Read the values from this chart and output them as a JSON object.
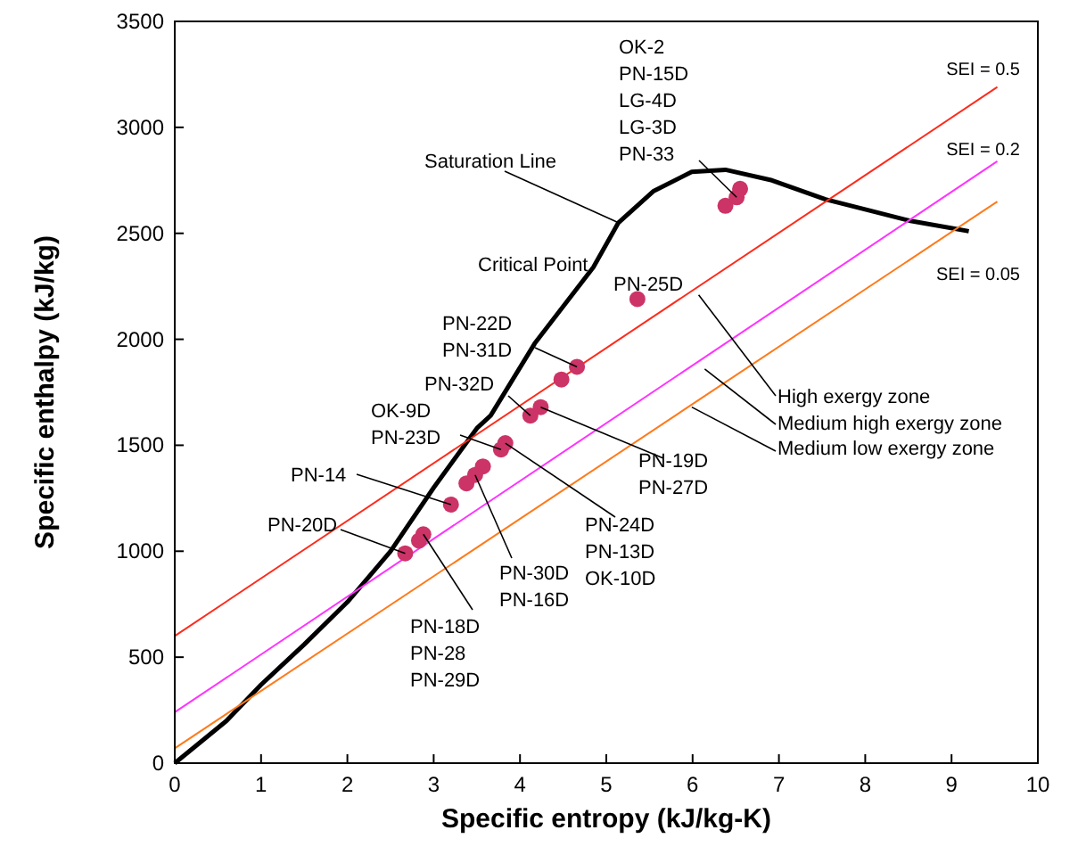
{
  "chart_data": {
    "type": "scatter",
    "xlabel": "Specific entropy (kJ/kg-K)",
    "ylabel": "Specific enthalpy (kJ/kg)",
    "xlim": [
      0,
      10
    ],
    "ylim": [
      0,
      3500
    ],
    "xticks": [
      0,
      1,
      2,
      3,
      4,
      5,
      6,
      7,
      8,
      9,
      10
    ],
    "yticks": [
      0,
      500,
      1000,
      1500,
      2000,
      2500,
      3000,
      3500
    ],
    "grid": false,
    "legend": false,
    "series": [
      {
        "type": "line",
        "color": "#000000",
        "x": [
          0,
          0.6,
          1,
          1.5,
          2,
          2.5,
          3,
          3.5,
          3.66,
          4.17,
          4.85,
          5.14,
          5.55,
          5.99,
          6.38,
          6.92,
          7.54,
          8.03,
          8.51,
          9.2
        ],
        "values": [
          0,
          200,
          370,
          560,
          760,
          1000,
          1300,
          1580,
          1640,
          1980,
          2340,
          2550,
          2700,
          2790,
          2800,
          2750,
          2660,
          2610,
          2560,
          2510
        ]
      },
      {
        "type": "line",
        "name": "SEI = 0.5",
        "color": "#ff2a1a",
        "x": [
          0,
          9.53
        ],
        "values": [
          600,
          3190
        ]
      },
      {
        "type": "line",
        "name": "SEI = 0.2",
        "color": "#ff33ff",
        "x": [
          0,
          9.53
        ],
        "values": [
          240,
          2840
        ]
      },
      {
        "type": "line",
        "name": "SEI = 0.05",
        "color": "#ff7a1a",
        "x": [
          0,
          9.53
        ],
        "values": [
          70,
          2650
        ]
      },
      {
        "type": "scatter",
        "color": "#cc3366",
        "marker": "circle",
        "x": [
          6.38,
          6.51,
          6.55,
          5.36,
          4.66,
          4.48,
          4.24,
          4.12,
          3.83,
          3.78,
          3.57,
          3.48,
          3.38,
          3.2,
          2.88,
          2.83,
          2.67
        ],
        "values": [
          2630,
          2670,
          2710,
          2190,
          1870,
          1810,
          1680,
          1640,
          1510,
          1480,
          1400,
          1360,
          1320,
          1220,
          1080,
          1050,
          990
        ]
      }
    ],
    "annotations": [
      {
        "text": "OK-2\nPN-15D\nLG-4D\nLG-3D\nPN-33",
        "x": 6.51,
        "y": 2670
      },
      {
        "text": "Saturation Line",
        "x": 5.14,
        "y": 2550
      },
      "Critical Point",
      {
        "text": "PN-25D",
        "x": 5.36,
        "y": 2190
      },
      {
        "text": "PN-22D\nPN-31D",
        "x": 4.66,
        "y": 1870
      },
      {
        "text": "PN-32D",
        "x": 4.12,
        "y": 1640
      },
      {
        "text": "OK-9D\nPN-23D",
        "x": 3.78,
        "y": 1480
      },
      {
        "text": "PN-14",
        "x": 3.2,
        "y": 1220
      },
      {
        "text": "PN-20D",
        "x": 2.67,
        "y": 990
      },
      {
        "text": "PN-18D\nPN-28\nPN-29D",
        "x": 2.88,
        "y": 1080
      },
      {
        "text": "PN-30D\nPN-16D",
        "x": 3.48,
        "y": 1360
      },
      {
        "text": "PN-24D\nPN-13D\nOK-10D",
        "x": 3.83,
        "y": 1510
      },
      {
        "text": "PN-19D\nPN-27D",
        "x": 4.24,
        "y": 1680
      },
      {
        "text": "High exergy zone",
        "x": 6.07,
        "y": 2210
      },
      {
        "text": "Medium high exergy zone",
        "x": 6.14,
        "y": 1860
      },
      {
        "text": "Medium low exergy zone",
        "x": 5.99,
        "y": 1680
      }
    ]
  }
}
